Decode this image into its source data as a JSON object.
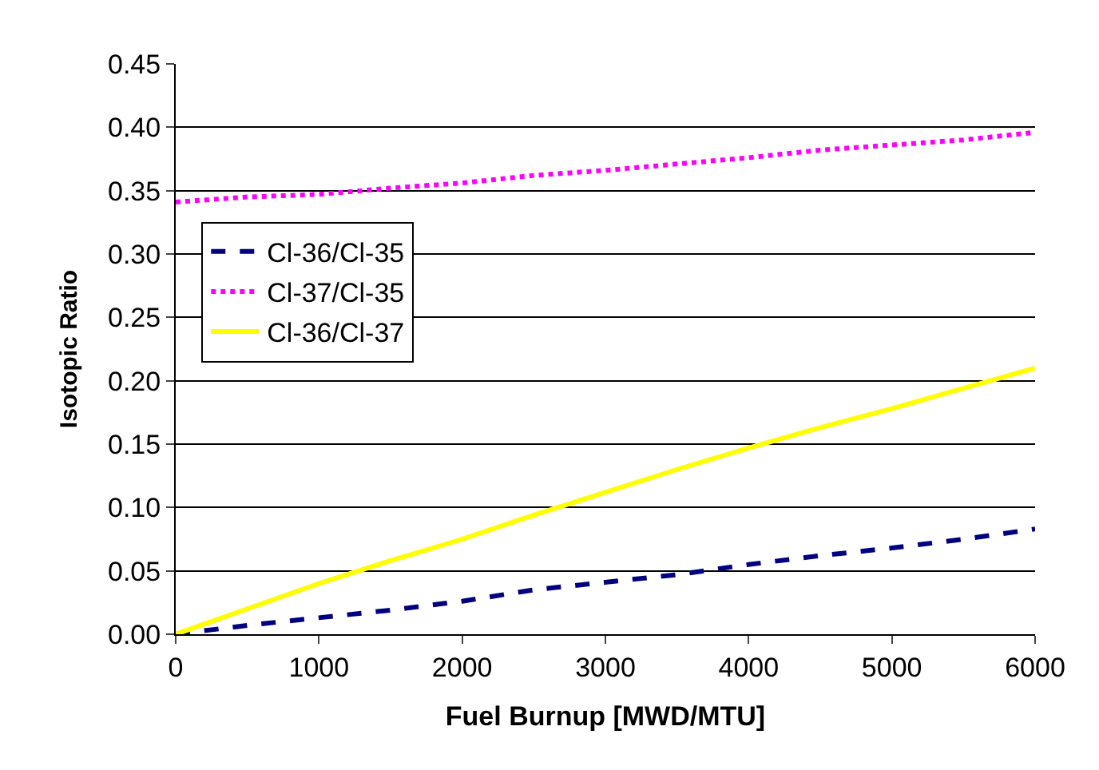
{
  "chart_data": {
    "type": "line",
    "xlabel": "Fuel Burnup [MWD/MTU]",
    "ylabel": "Isotopic Ratio",
    "xlim": [
      0,
      6000
    ],
    "xticks": [
      0,
      1000,
      2000,
      3000,
      4000,
      5000,
      6000
    ],
    "ylim": [
      0,
      0.45
    ],
    "yticks": [
      {
        "value": 0,
        "label": "0.00"
      },
      {
        "value": 0.05,
        "label": "0.05"
      },
      {
        "value": 0.1,
        "label": "0.10"
      },
      {
        "value": 0.15,
        "label": "0.15"
      },
      {
        "value": 0.2,
        "label": "0.20"
      },
      {
        "value": 0.25,
        "label": "0.25"
      },
      {
        "value": 0.3,
        "label": "0.30"
      },
      {
        "value": 0.35,
        "label": "0.35"
      },
      {
        "value": 0.4,
        "label": "0.40"
      },
      {
        "value": 0.45,
        "label": "0.45"
      }
    ],
    "grid": "y",
    "legend": "left",
    "marker": "none",
    "x": [
      0,
      500,
      1000,
      1500,
      2000,
      2500,
      3000,
      3500,
      4000,
      4500,
      5000,
      5500,
      6000
    ],
    "series": [
      {
        "name": "Cl-36/Cl-35",
        "color": "#000080",
        "line_style": "dashed",
        "values": [
          0,
          0.007,
          0.013,
          0.019,
          0.026,
          0.035,
          0.041,
          0.047,
          0.055,
          0.062,
          0.068,
          0.075,
          0.083
        ]
      },
      {
        "name": "Cl-37/Cl-35",
        "color": "#ff00ff",
        "line_style": "dotted",
        "values": [
          0.341,
          0.345,
          0.347,
          0.352,
          0.356,
          0.362,
          0.366,
          0.371,
          0.376,
          0.382,
          0.386,
          0.39,
          0.396
        ]
      },
      {
        "name": "Cl-36/Cl-37",
        "color": "#ffff00",
        "line_style": "solid",
        "values": [
          0,
          0.02,
          0.04,
          0.058,
          0.075,
          0.094,
          0.112,
          0.13,
          0.147,
          0.163,
          0.178,
          0.194,
          0.21
        ]
      }
    ]
  }
}
